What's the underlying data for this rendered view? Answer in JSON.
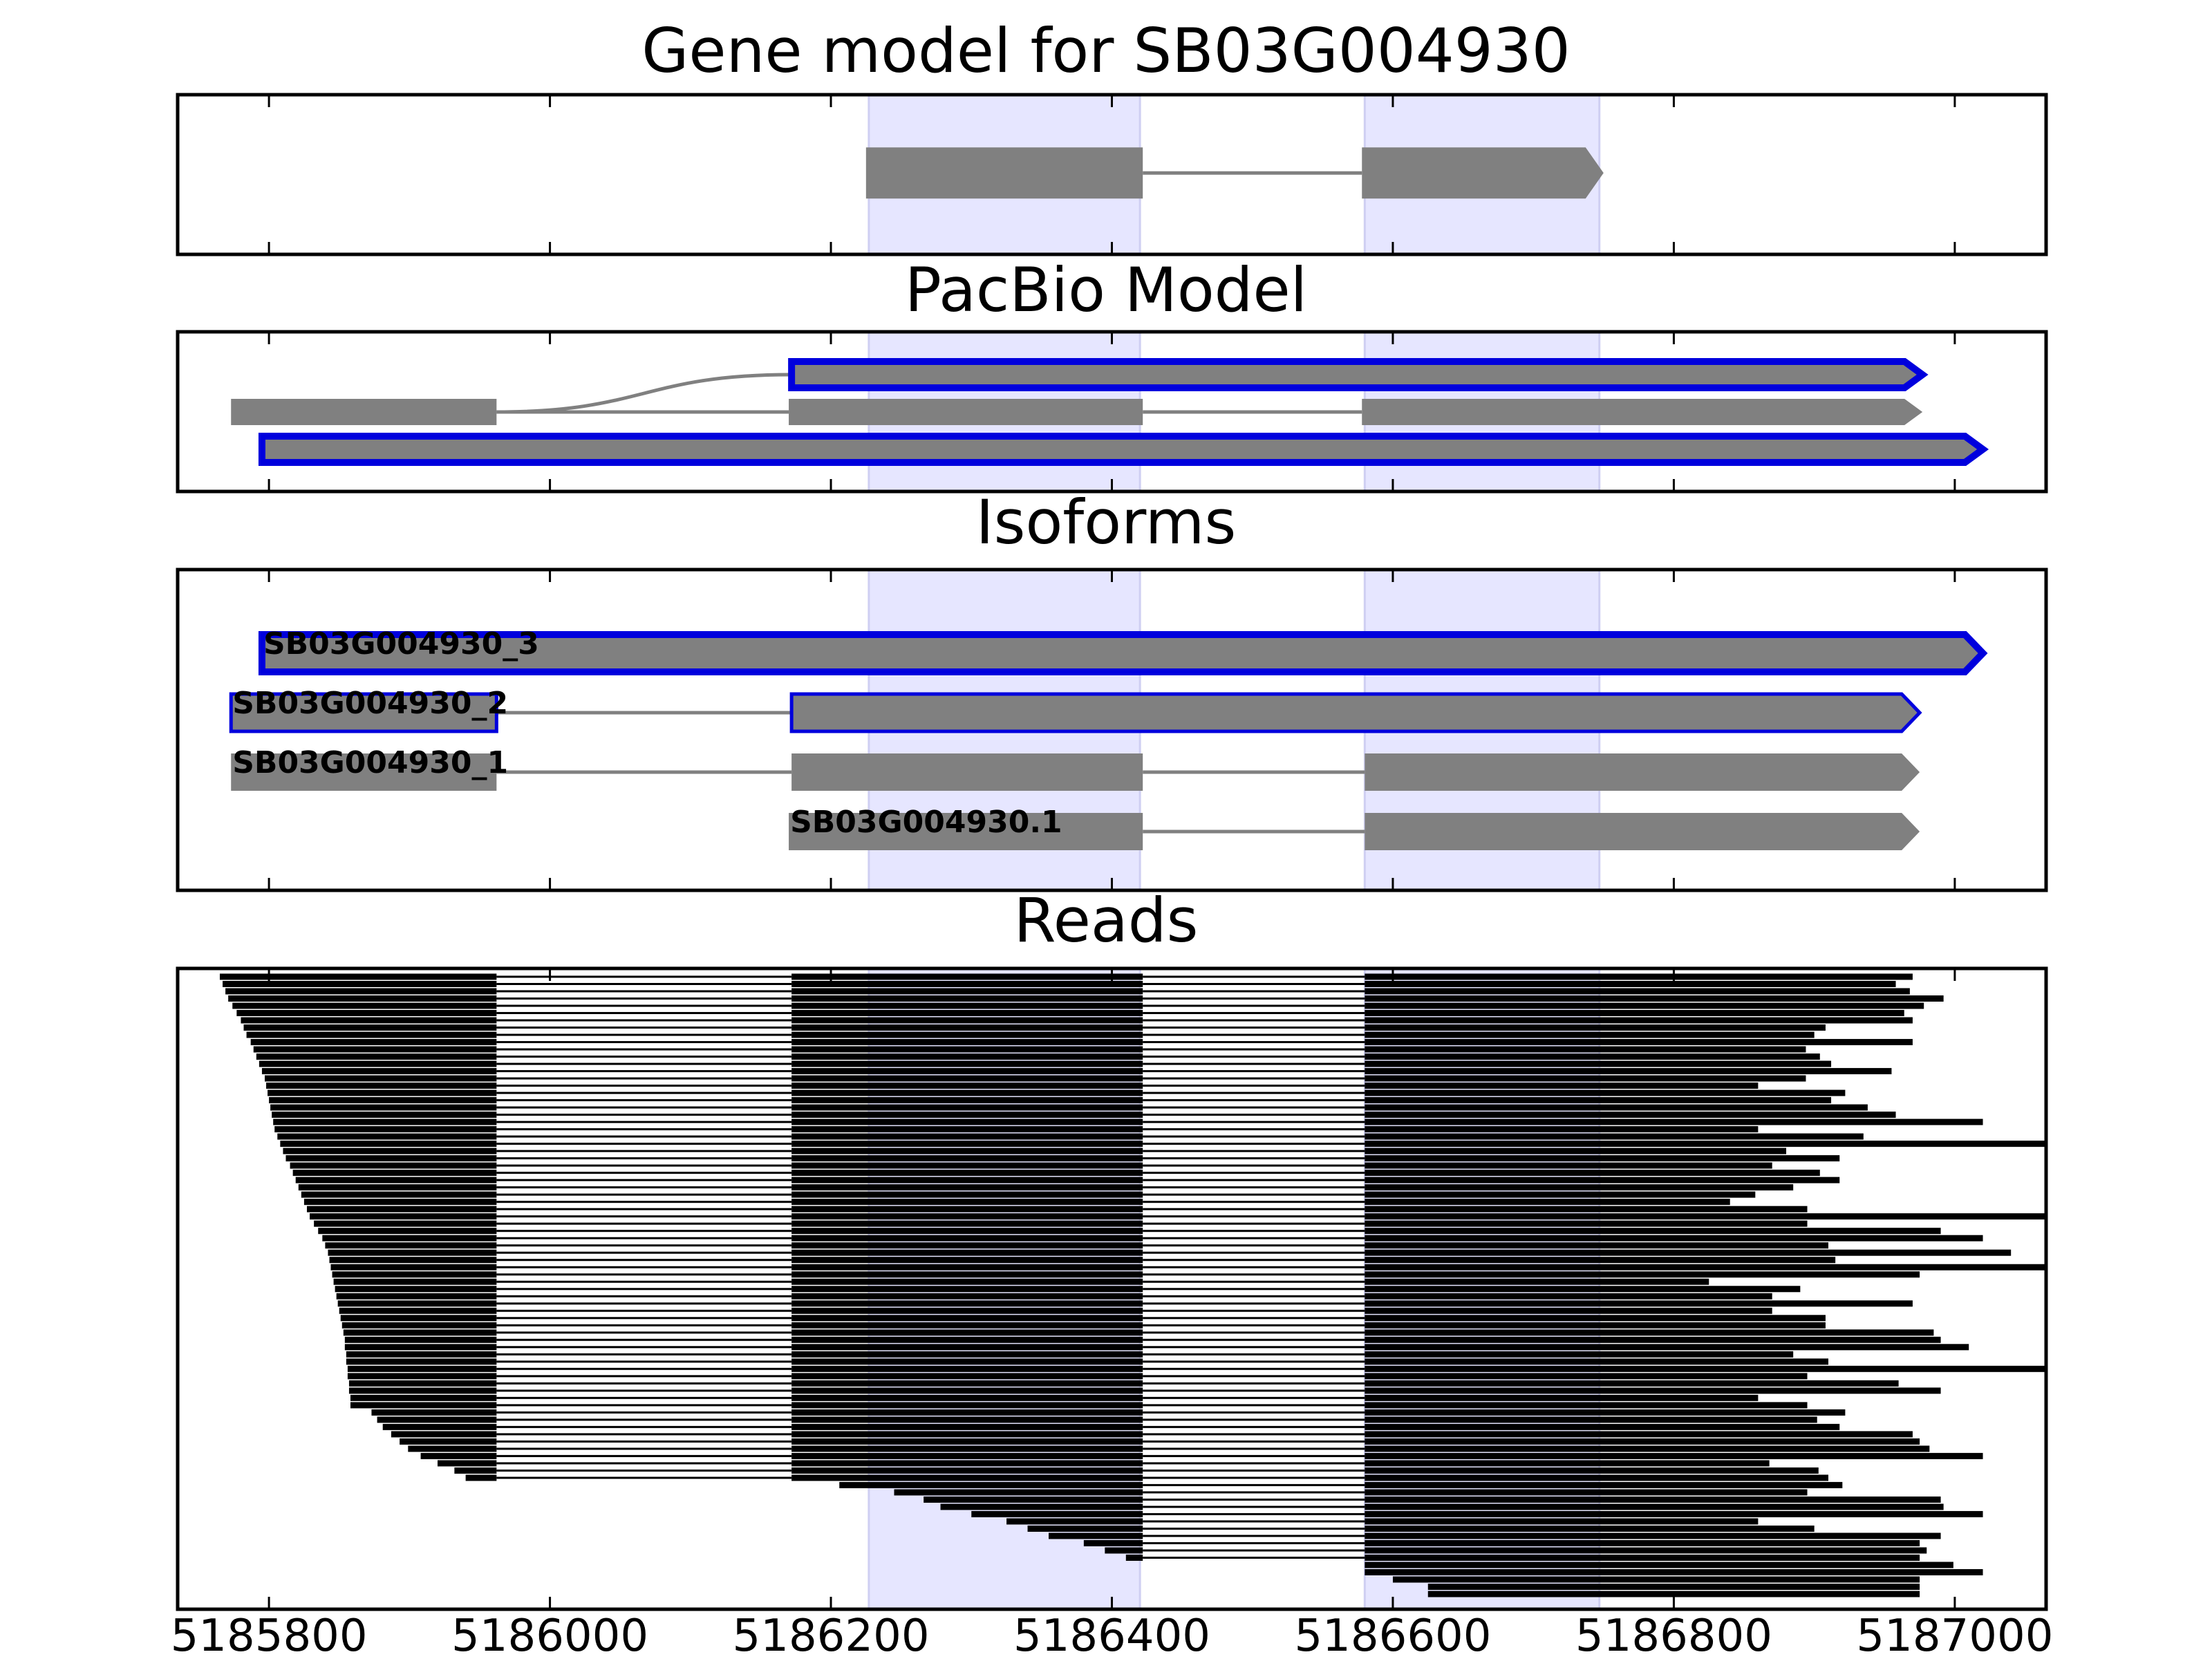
{
  "chart_data": {
    "type": "gene-track",
    "title": "Gene model for SB03G004930",
    "xlim": [
      5185735,
      5187065
    ],
    "x_ticks": [
      "5185800",
      "5186000",
      "5186200",
      "5186400",
      "5186600",
      "5186800",
      "5187000"
    ],
    "x_tick_values": [
      5185800,
      5186000,
      5186200,
      5186400,
      5186600,
      5186800,
      5187000
    ],
    "highlight_regions": [
      [
        5186227,
        5186420
      ],
      [
        5186580,
        5186747
      ]
    ],
    "colors": {
      "feature": "#808080",
      "highlight": "#e6e6ff",
      "outline": "#0000dd",
      "read": "#000000"
    },
    "panels": [
      {
        "id": "gene-model",
        "title": "",
        "rows": 1,
        "tracks": [
          {
            "label": "",
            "row": 0,
            "highlight": false,
            "exons": [
              [
                5186225,
                5186422
              ],
              [
                5186578,
                5186750
              ]
            ]
          }
        ]
      },
      {
        "id": "pacbio",
        "title": "PacBio Model",
        "rows": 3,
        "tracks": [
          {
            "label": "",
            "row": 0,
            "highlight": true,
            "exons": [
              [
                5186172,
                5186977
              ]
            ]
          },
          {
            "label": "",
            "row": 1,
            "highlight": false,
            "exons": [
              [
                5185773,
                5185962
              ],
              [
                5186170,
                5186422
              ],
              [
                5186578,
                5186977
              ]
            ]
          },
          {
            "label": "",
            "row": 2,
            "highlight": true,
            "exons": [
              [
                5185795,
                5187020
              ]
            ]
          }
        ],
        "splice_curve": {
          "from": 5185962,
          "from_row": 1,
          "to": 5186172,
          "to_row": 0
        }
      },
      {
        "id": "isoforms",
        "title": "Isoforms",
        "rows": 4,
        "tracks": [
          {
            "label": "SB03G004930_3",
            "row": 0,
            "highlight": true,
            "thick": true,
            "exons": [
              [
                5185795,
                5187020
              ]
            ]
          },
          {
            "label": "SB03G004930_2",
            "row": 1,
            "highlight": true,
            "thick": false,
            "exons": [
              [
                5185773,
                5185962
              ],
              [
                5186172,
                5186975
              ]
            ]
          },
          {
            "label": "SB03G004930_1",
            "row": 2,
            "highlight": false,
            "exons": [
              [
                5185773,
                5185962
              ],
              [
                5186172,
                5186422
              ],
              [
                5186580,
                5186975
              ]
            ]
          },
          {
            "label": "SB03G004930.1",
            "row": 3,
            "highlight": false,
            "exons": [
              [
                5186170,
                5186422
              ],
              [
                5186580,
                5186975
              ]
            ]
          }
        ]
      },
      {
        "id": "reads",
        "title": "Reads",
        "rows": 122,
        "read_starts": [
          5185765,
          5185767,
          5185769,
          5185771,
          5185774,
          5185777,
          5185780,
          5185782,
          5185784,
          5185787,
          5185789,
          5185791,
          5185793,
          5185795,
          5185797,
          5185798,
          5185799,
          5185800,
          5185801,
          5185802,
          5185803,
          5185804,
          5185806,
          5185808,
          5185810,
          5185812,
          5185815,
          5185817,
          5185819,
          5185821,
          5185823,
          5185825,
          5185827,
          5185829,
          5185832,
          5185835,
          5185838,
          5185840,
          5185842,
          5185843,
          5185844,
          5185845,
          5185846,
          5185847,
          5185848,
          5185849,
          5185850,
          5185851,
          5185852,
          5185853,
          5185854,
          5185854,
          5185855,
          5185855,
          5185856,
          5185856,
          5185857,
          5185857,
          5185858,
          5185858,
          5185873,
          5185877,
          5185881,
          5185887,
          5185893,
          5185899,
          5185908,
          5185920,
          5185932,
          5185940,
          5186206,
          5186245,
          5186266,
          5186278,
          5186300,
          5186325,
          5186340,
          5186355,
          5186380,
          5186395,
          5186410,
          5186580,
          5186580,
          5186600,
          5186625,
          5186625
        ],
        "read_ends": [
          5186970,
          5186958,
          5186968,
          5186992,
          5186978,
          5186964,
          5186970,
          5186908,
          5186900,
          5186970,
          5186894,
          5186904,
          5186912,
          5186955,
          5186894,
          5186860,
          5186922,
          5186912,
          5186938,
          5186958,
          5187020,
          5186860,
          5186935,
          5187065,
          5186880,
          5186918,
          5186870,
          5186904,
          5186918,
          5186885,
          5186858,
          5186840,
          5186895,
          5187065,
          5186895,
          5186990,
          5187020,
          5186910,
          5187040,
          5186915,
          5187065,
          5186975,
          5186825,
          5186890,
          5186870,
          5186970,
          5186870,
          5186908,
          5186908,
          5186985,
          5186990,
          5187010,
          5186885,
          5186910,
          5187065,
          5186895,
          5186960,
          5186990,
          5186860,
          5186895,
          5186922,
          5186902,
          5186918,
          5186970,
          5186975,
          5186982,
          5187020,
          5186868,
          5186903,
          5186910,
          5186920,
          5186895,
          5186990,
          5186992,
          5187020,
          5186860,
          5186900,
          5186990,
          5186975,
          5186980,
          5186975,
          5186999,
          5187020,
          5186975,
          5186975,
          5186975
        ],
        "note": ""
      }
    ]
  }
}
